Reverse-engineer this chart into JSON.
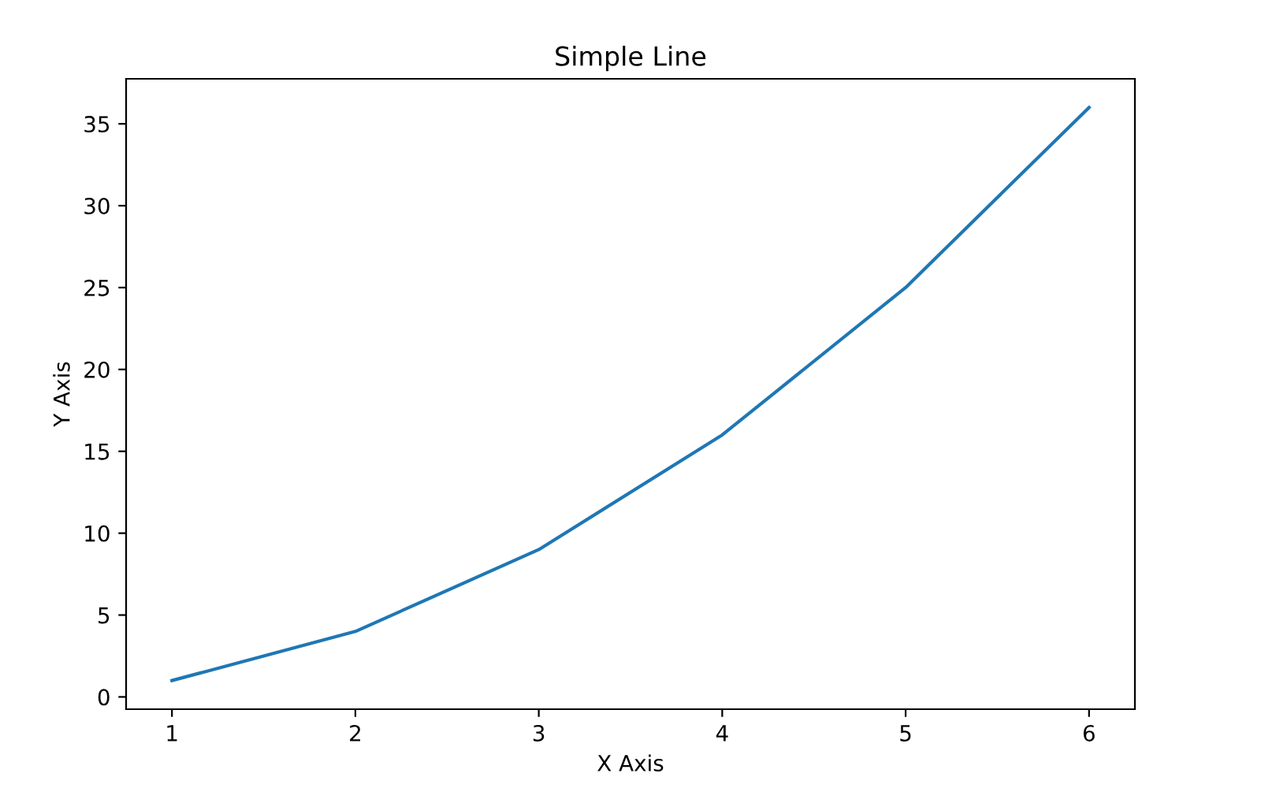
{
  "chart_data": {
    "type": "line",
    "title": "Simple Line",
    "xlabel": "X Axis",
    "ylabel": "Y Axis",
    "x": [
      1,
      2,
      3,
      4,
      5,
      6
    ],
    "series": [
      {
        "color": "#1f77b4",
        "values": [
          1,
          4,
          9,
          16,
          25,
          36
        ]
      }
    ],
    "xlim": [
      0.75,
      6.25
    ],
    "xticks": [
      1,
      2,
      3,
      4,
      5,
      6
    ],
    "ylim": [
      -0.75,
      37.75
    ],
    "yticks": [
      0,
      5,
      10,
      15,
      20,
      25,
      30,
      35
    ],
    "grid": false,
    "marker": "none",
    "line_style": "solid"
  }
}
